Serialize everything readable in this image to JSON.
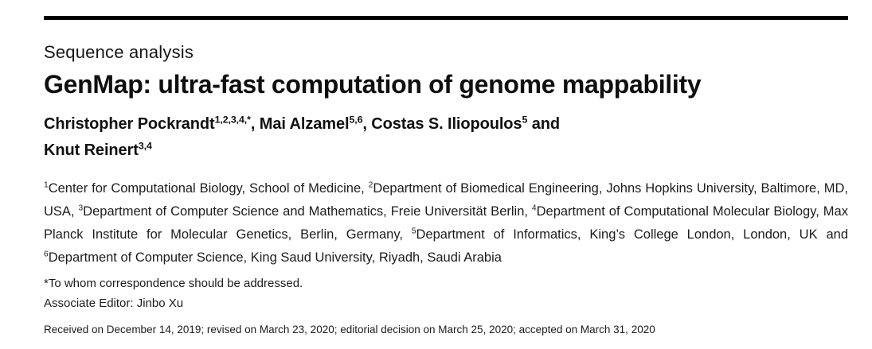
{
  "article": {
    "kicker": "Sequence analysis",
    "title": "GenMap: ultra-fast computation of genome mappability",
    "authors": [
      {
        "name": "Christopher Pockrandt",
        "sup": "1,2,3,4,*",
        "after": ", "
      },
      {
        "name": "Mai Alzamel",
        "sup": "5,6",
        "after": ", "
      },
      {
        "name": "Costas S. Iliopoulos",
        "sup": "5",
        "after": " and"
      },
      {
        "name": "Knut Reinert",
        "sup": "3,4",
        "after": ""
      }
    ],
    "affiliations": [
      {
        "sup": "1",
        "text": "Center for Computational Biology, School of Medicine, "
      },
      {
        "sup": "2",
        "text": "Department of Biomedical Engineering, Johns Hopkins University, Baltimore, MD, USA, "
      },
      {
        "sup": "3",
        "text": "Department of Computer Science and Mathematics, Freie Universität Berlin, "
      },
      {
        "sup": "4",
        "text": "Department of Computational Molecular Biology, Max Planck Institute for Molecular Genetics, Berlin, Germany, "
      },
      {
        "sup": "5",
        "text": "Department of Informatics, King’s College London, London, UK and "
      },
      {
        "sup": "6",
        "text": "Department of Computer Science, King Saud University, Riyadh, Saudi Arabia"
      }
    ],
    "footnotes": {
      "correspondence": "*To whom correspondence should be addressed.",
      "associate_editor": "Associate Editor: Jinbo Xu",
      "history": "Received on December 14, 2019; revised on March 23, 2020; editorial decision on March 25, 2020; accepted on March 31, 2020"
    },
    "colors": {
      "text": "#1a1a1a",
      "rule": "#000000"
    }
  }
}
